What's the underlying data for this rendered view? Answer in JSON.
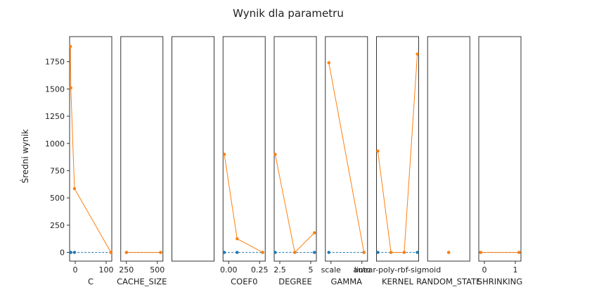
{
  "chart_data": {
    "type": "line",
    "title": "Wynik dla parametru",
    "ylabel": "Średni wynik",
    "ylim": [
      -80,
      1980
    ],
    "yticks": [
      0,
      250,
      500,
      750,
      1000,
      1250,
      1500,
      1750
    ],
    "grid": false,
    "colors": {
      "series_a": "#1f77b4",
      "series_b": "#ff7f0e"
    },
    "panels": [
      {
        "xlabel": "C",
        "xticks": [
          "0",
          "100"
        ],
        "xlim": [
          -2,
          102
        ],
        "series": [
          {
            "x": [
              0.1,
              1,
              10,
              100
            ],
            "values": [
              0,
              0,
              0,
              0
            ]
          },
          {
            "x": [
              0.1,
              1,
              10,
              100
            ],
            "values": [
              1890,
              1510,
              585,
              0
            ]
          }
        ]
      },
      {
        "xlabel": "CACHE_SIZE",
        "xticks": [
          "250",
          "500"
        ],
        "xlim": [
          150,
          520
        ],
        "series": [
          {
            "x": [
              200,
              500
            ],
            "values": [
              0,
              0
            ]
          },
          {
            "x": [
              200,
              500
            ],
            "values": [
              0,
              0
            ]
          }
        ]
      },
      {
        "xlabel": "",
        "xticks": [],
        "xlim": [
          0,
          1
        ],
        "series": []
      },
      {
        "xlabel": "COEF0",
        "xticks": [
          "0.00",
          "0.25"
        ],
        "xlim": [
          -0.01,
          0.32
        ],
        "series": [
          {
            "x": [
              0,
              0.1,
              0.3
            ],
            "values": [
              0,
              0,
              0
            ]
          },
          {
            "x": [
              0,
              0.1,
              0.3
            ],
            "values": [
              900,
              125,
              0
            ]
          }
        ]
      },
      {
        "xlabel": "DEGREE",
        "xticks": [
          "2.5",
          "5"
        ],
        "xlim": [
          0.9,
          5.2
        ],
        "series": [
          {
            "x": [
              1,
              3,
              5
            ],
            "values": [
              0,
              0,
              0
            ]
          },
          {
            "x": [
              1,
              3,
              5
            ],
            "values": [
              900,
              0,
              180
            ]
          }
        ]
      },
      {
        "xlabel": "GAMMA",
        "xticks": [
          "scale",
          "auto"
        ],
        "xlim": [
          -0.1,
          1.1
        ],
        "series": [
          {
            "x": [
              "scale",
              "auto"
            ],
            "values": [
              0,
              0
            ]
          },
          {
            "x": [
              "scale",
              "auto"
            ],
            "values": [
              1740,
              0
            ]
          }
        ]
      },
      {
        "xlabel": "KERNEL",
        "xticks": [
          "linear-poly-rbf-sigmoid"
        ],
        "xlim": [
          -0.1,
          3.1
        ],
        "series": [
          {
            "x": [
              "linear",
              "poly",
              "rbf",
              "sigmoid"
            ],
            "values": [
              0,
              0,
              0,
              0
            ]
          },
          {
            "x": [
              "linear",
              "poly",
              "rbf",
              "sigmoid"
            ],
            "values": [
              930,
              0,
              0,
              1820
            ]
          }
        ]
      },
      {
        "xlabel": "RANDOM_STATE",
        "xticks": [],
        "xlim": [
          -1,
          1
        ],
        "series": [
          {
            "x": [
              0
            ],
            "values": [
              0
            ]
          },
          {
            "x": [
              0
            ],
            "values": [
              0
            ]
          }
        ]
      },
      {
        "xlabel": "SHRINKING",
        "xticks": [
          "0",
          "1"
        ],
        "xlim": [
          -0.05,
          1.05
        ],
        "series": [
          {
            "x": [
              0,
              1
            ],
            "values": [
              0,
              0
            ]
          },
          {
            "x": [
              0,
              1
            ],
            "values": [
              0,
              0
            ]
          }
        ]
      }
    ]
  }
}
